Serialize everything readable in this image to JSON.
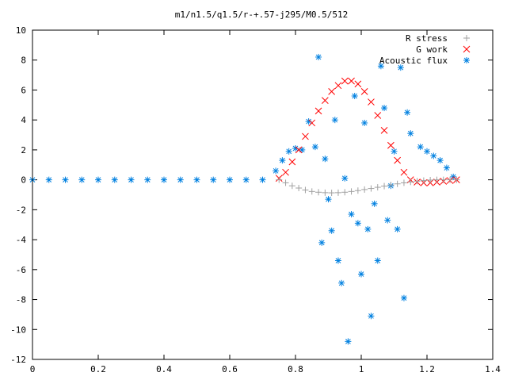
{
  "chart_data": {
    "type": "scatter",
    "title": "m1/n1.5/q1.5/r-+.57-j295/M0.5/512",
    "xlim": [
      0,
      1.4
    ],
    "ylim": [
      -12,
      10
    ],
    "xticks": [
      "0",
      "0.2",
      "0.4",
      "0.6",
      "0.8",
      "1",
      "1.2",
      "1.4"
    ],
    "yticks": [
      "10",
      "8",
      "6",
      "4",
      "2",
      "0",
      "-2",
      "-4",
      "-6",
      "-8",
      "-10",
      "-12"
    ],
    "legend_position": "top-right",
    "grid": false,
    "series": [
      {
        "name": "R stress",
        "marker": "plus",
        "color": "#a0a0a0",
        "x": [
          0.75,
          0.77,
          0.79,
          0.81,
          0.83,
          0.85,
          0.87,
          0.89,
          0.91,
          0.93,
          0.95,
          0.97,
          0.99,
          1.01,
          1.03,
          1.05,
          1.07,
          1.09,
          1.11,
          1.13,
          1.15,
          1.17,
          1.19,
          1.21,
          1.23,
          1.25,
          1.27,
          1.29
        ],
        "y": [
          0.0,
          -0.2,
          -0.4,
          -0.55,
          -0.68,
          -0.78,
          -0.83,
          -0.86,
          -0.87,
          -0.86,
          -0.83,
          -0.78,
          -0.72,
          -0.65,
          -0.58,
          -0.5,
          -0.42,
          -0.34,
          -0.27,
          -0.2,
          -0.14,
          -0.09,
          -0.05,
          -0.02,
          0.0,
          0.0,
          0.0,
          0.0
        ]
      },
      {
        "name": "G work",
        "marker": "cross",
        "color": "#ff0000",
        "x": [
          0.75,
          0.77,
          0.79,
          0.81,
          0.83,
          0.85,
          0.87,
          0.89,
          0.91,
          0.93,
          0.95,
          0.97,
          0.99,
          1.01,
          1.03,
          1.05,
          1.07,
          1.09,
          1.11,
          1.13,
          1.15,
          1.17,
          1.19,
          1.21,
          1.23,
          1.25,
          1.27,
          1.29
        ],
        "y": [
          0.1,
          0.5,
          1.2,
          2.0,
          2.9,
          3.8,
          4.6,
          5.3,
          5.9,
          6.3,
          6.6,
          6.6,
          6.4,
          5.9,
          5.2,
          4.3,
          3.3,
          2.3,
          1.3,
          0.5,
          0.0,
          -0.15,
          -0.2,
          -0.2,
          -0.15,
          -0.1,
          -0.05,
          0.0
        ]
      },
      {
        "name": "Acoustic flux",
        "marker": "star",
        "color": "#0080e0",
        "x": [
          0.0,
          0.05,
          0.1,
          0.15,
          0.2,
          0.25,
          0.3,
          0.35,
          0.4,
          0.45,
          0.5,
          0.55,
          0.6,
          0.65,
          0.7,
          0.74,
          0.76,
          0.78,
          0.8,
          0.82,
          0.84,
          0.86,
          0.87,
          0.88,
          0.89,
          0.9,
          0.91,
          0.92,
          0.93,
          0.94,
          0.95,
          0.96,
          0.97,
          0.98,
          0.99,
          1.0,
          1.01,
          1.02,
          1.03,
          1.04,
          1.05,
          1.06,
          1.07,
          1.08,
          1.09,
          1.1,
          1.11,
          1.12,
          1.13,
          1.14,
          1.15,
          1.18,
          1.2,
          1.22,
          1.24,
          1.26,
          1.28
        ],
        "y": [
          0,
          0,
          0,
          0,
          0,
          0,
          0,
          0,
          0,
          0,
          0,
          0,
          0,
          0,
          0,
          0.6,
          1.3,
          1.9,
          2.1,
          2.0,
          3.9,
          2.2,
          8.2,
          -4.2,
          1.4,
          -1.3,
          -3.4,
          4.0,
          -5.4,
          -6.9,
          0.1,
          -10.8,
          -2.3,
          5.6,
          -2.9,
          -6.3,
          3.8,
          -3.3,
          -9.1,
          -1.6,
          -5.4,
          7.6,
          4.8,
          -2.7,
          -0.4,
          1.9,
          -3.3,
          7.5,
          -7.9,
          4.5,
          3.1,
          2.2,
          1.9,
          1.6,
          1.3,
          0.8,
          0.2
        ]
      }
    ]
  }
}
